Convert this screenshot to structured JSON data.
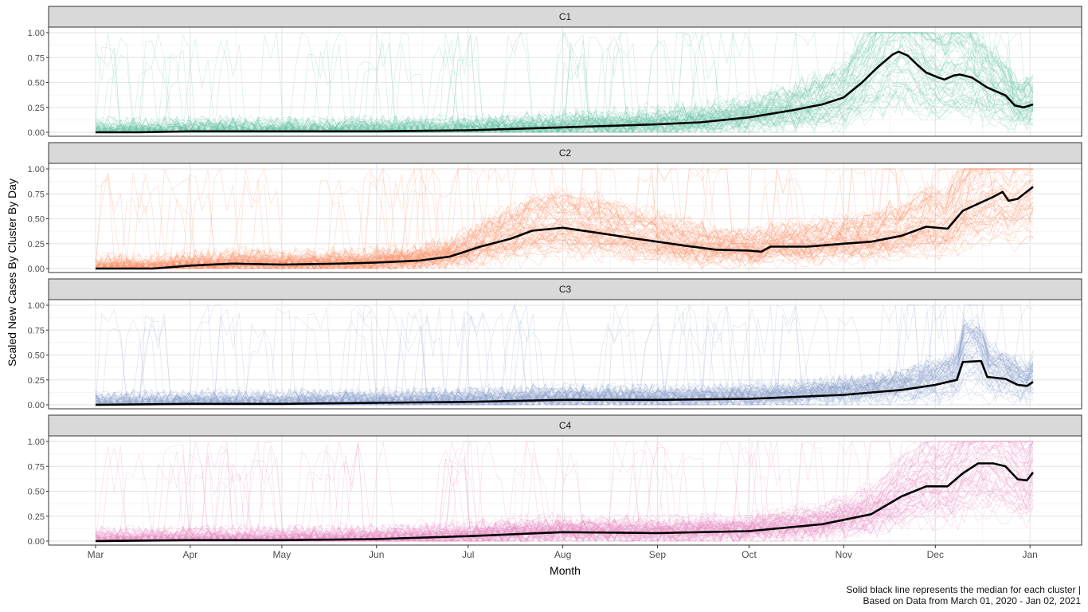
{
  "chart_data": {
    "type": "line",
    "panels": [
      "C1",
      "C2",
      "C3",
      "C4"
    ],
    "xlabel": "Month",
    "ylabel": "Scaled New Cases By Cluster By Day",
    "x_range": [
      "2020-03-01",
      "2021-01-02"
    ],
    "x_ticks": [
      {
        "label": "Mar",
        "date": "2020-03-01"
      },
      {
        "label": "Apr",
        "date": "2020-04-01"
      },
      {
        "label": "May",
        "date": "2020-05-01"
      },
      {
        "label": "Jun",
        "date": "2020-06-01"
      },
      {
        "label": "Jul",
        "date": "2020-07-01"
      },
      {
        "label": "Aug",
        "date": "2020-08-01"
      },
      {
        "label": "Sep",
        "date": "2020-09-01"
      },
      {
        "label": "Oct",
        "date": "2020-10-01"
      },
      {
        "label": "Nov",
        "date": "2020-11-01"
      },
      {
        "label": "Dec",
        "date": "2020-12-01"
      },
      {
        "label": "Jan",
        "date": "2021-01-01"
      }
    ],
    "y_ticks": [
      "0.00",
      "0.25",
      "0.50",
      "0.75",
      "1.00"
    ],
    "ylim": [
      0,
      1
    ],
    "grid": true,
    "series": [
      {
        "panel": "C1",
        "color": "#66c2a5",
        "median": [
          {
            "x": "2020-03-01",
            "y": 0.0
          },
          {
            "x": "2020-03-15",
            "y": 0.0
          },
          {
            "x": "2020-04-01",
            "y": 0.01
          },
          {
            "x": "2020-05-01",
            "y": 0.01
          },
          {
            "x": "2020-06-01",
            "y": 0.01
          },
          {
            "x": "2020-07-01",
            "y": 0.02
          },
          {
            "x": "2020-08-01",
            "y": 0.05
          },
          {
            "x": "2020-09-01",
            "y": 0.08
          },
          {
            "x": "2020-09-15",
            "y": 0.1
          },
          {
            "x": "2020-10-01",
            "y": 0.15
          },
          {
            "x": "2020-10-15",
            "y": 0.22
          },
          {
            "x": "2020-10-25",
            "y": 0.28
          },
          {
            "x": "2020-11-01",
            "y": 0.35
          },
          {
            "x": "2020-11-07",
            "y": 0.5
          },
          {
            "x": "2020-11-12",
            "y": 0.65
          },
          {
            "x": "2020-11-17",
            "y": 0.78
          },
          {
            "x": "2020-11-19",
            "y": 0.81
          },
          {
            "x": "2020-11-22",
            "y": 0.77
          },
          {
            "x": "2020-11-25",
            "y": 0.68
          },
          {
            "x": "2020-11-28",
            "y": 0.6
          },
          {
            "x": "2020-12-02",
            "y": 0.55
          },
          {
            "x": "2020-12-04",
            "y": 0.53
          },
          {
            "x": "2020-12-07",
            "y": 0.57
          },
          {
            "x": "2020-12-09",
            "y": 0.58
          },
          {
            "x": "2020-12-13",
            "y": 0.55
          },
          {
            "x": "2020-12-18",
            "y": 0.45
          },
          {
            "x": "2020-12-24",
            "y": 0.37
          },
          {
            "x": "2020-12-27",
            "y": 0.27
          },
          {
            "x": "2020-12-30",
            "y": 0.25
          },
          {
            "x": "2021-01-02",
            "y": 0.28
          }
        ]
      },
      {
        "panel": "C2",
        "color": "#fc8d62",
        "median": [
          {
            "x": "2020-03-01",
            "y": 0.0
          },
          {
            "x": "2020-03-20",
            "y": 0.0
          },
          {
            "x": "2020-04-01",
            "y": 0.03
          },
          {
            "x": "2020-04-15",
            "y": 0.05
          },
          {
            "x": "2020-05-01",
            "y": 0.04
          },
          {
            "x": "2020-05-20",
            "y": 0.05
          },
          {
            "x": "2020-06-01",
            "y": 0.06
          },
          {
            "x": "2020-06-15",
            "y": 0.08
          },
          {
            "x": "2020-06-25",
            "y": 0.12
          },
          {
            "x": "2020-07-05",
            "y": 0.22
          },
          {
            "x": "2020-07-15",
            "y": 0.3
          },
          {
            "x": "2020-07-22",
            "y": 0.38
          },
          {
            "x": "2020-08-01",
            "y": 0.41
          },
          {
            "x": "2020-08-10",
            "y": 0.37
          },
          {
            "x": "2020-08-25",
            "y": 0.3
          },
          {
            "x": "2020-09-10",
            "y": 0.23
          },
          {
            "x": "2020-09-20",
            "y": 0.19
          },
          {
            "x": "2020-10-01",
            "y": 0.18
          },
          {
            "x": "2020-10-05",
            "y": 0.17
          },
          {
            "x": "2020-10-08",
            "y": 0.22
          },
          {
            "x": "2020-10-20",
            "y": 0.22
          },
          {
            "x": "2020-11-01",
            "y": 0.25
          },
          {
            "x": "2020-11-10",
            "y": 0.27
          },
          {
            "x": "2020-11-20",
            "y": 0.33
          },
          {
            "x": "2020-11-28",
            "y": 0.42
          },
          {
            "x": "2020-12-05",
            "y": 0.4
          },
          {
            "x": "2020-12-10",
            "y": 0.58
          },
          {
            "x": "2020-12-20",
            "y": 0.72
          },
          {
            "x": "2020-12-23",
            "y": 0.77
          },
          {
            "x": "2020-12-25",
            "y": 0.68
          },
          {
            "x": "2020-12-28",
            "y": 0.7
          },
          {
            "x": "2021-01-02",
            "y": 0.82
          }
        ]
      },
      {
        "panel": "C3",
        "color": "#8da0cb",
        "median": [
          {
            "x": "2020-03-01",
            "y": 0.0
          },
          {
            "x": "2020-04-01",
            "y": 0.01
          },
          {
            "x": "2020-05-01",
            "y": 0.01
          },
          {
            "x": "2020-06-01",
            "y": 0.02
          },
          {
            "x": "2020-07-01",
            "y": 0.03
          },
          {
            "x": "2020-08-01",
            "y": 0.05
          },
          {
            "x": "2020-09-01",
            "y": 0.05
          },
          {
            "x": "2020-10-01",
            "y": 0.06
          },
          {
            "x": "2020-11-01",
            "y": 0.1
          },
          {
            "x": "2020-11-20",
            "y": 0.15
          },
          {
            "x": "2020-12-01",
            "y": 0.2
          },
          {
            "x": "2020-12-05",
            "y": 0.23
          },
          {
            "x": "2020-12-08",
            "y": 0.25
          },
          {
            "x": "2020-12-10",
            "y": 0.43
          },
          {
            "x": "2020-12-16",
            "y": 0.44
          },
          {
            "x": "2020-12-18",
            "y": 0.28
          },
          {
            "x": "2020-12-24",
            "y": 0.26
          },
          {
            "x": "2020-12-28",
            "y": 0.2
          },
          {
            "x": "2020-12-31",
            "y": 0.19
          },
          {
            "x": "2021-01-02",
            "y": 0.23
          }
        ]
      },
      {
        "panel": "C4",
        "color": "#e78ac3",
        "median": [
          {
            "x": "2020-03-01",
            "y": 0.0
          },
          {
            "x": "2020-04-01",
            "y": 0.01
          },
          {
            "x": "2020-05-01",
            "y": 0.01
          },
          {
            "x": "2020-06-01",
            "y": 0.02
          },
          {
            "x": "2020-07-01",
            "y": 0.05
          },
          {
            "x": "2020-08-01",
            "y": 0.09
          },
          {
            "x": "2020-09-01",
            "y": 0.08
          },
          {
            "x": "2020-10-01",
            "y": 0.1
          },
          {
            "x": "2020-10-25",
            "y": 0.17
          },
          {
            "x": "2020-11-10",
            "y": 0.27
          },
          {
            "x": "2020-11-20",
            "y": 0.45
          },
          {
            "x": "2020-11-28",
            "y": 0.55
          },
          {
            "x": "2020-12-05",
            "y": 0.55
          },
          {
            "x": "2020-12-10",
            "y": 0.68
          },
          {
            "x": "2020-12-15",
            "y": 0.78
          },
          {
            "x": "2020-12-20",
            "y": 0.78
          },
          {
            "x": "2020-12-24",
            "y": 0.75
          },
          {
            "x": "2020-12-28",
            "y": 0.62
          },
          {
            "x": "2020-12-31",
            "y": 0.61
          },
          {
            "x": "2021-01-02",
            "y": 0.69
          }
        ]
      }
    ]
  },
  "caption": {
    "line1": "Solid black line represents the median for each cluster |",
    "line2": "Based on Data from March 01, 2020 - Jan 02, 2021"
  }
}
